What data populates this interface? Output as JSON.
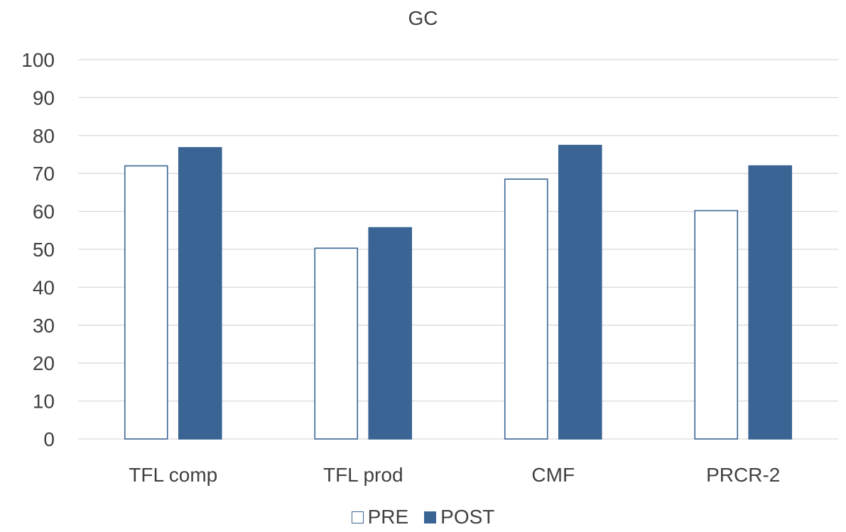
{
  "chart_data": {
    "type": "bar",
    "title": "GC",
    "xlabel": "",
    "ylabel": "",
    "ylim": [
      0,
      100
    ],
    "yticks": [
      0,
      10,
      20,
      30,
      40,
      50,
      60,
      70,
      80,
      90,
      100
    ],
    "grid": true,
    "legend_position": "bottom",
    "categories": [
      "TFL comp",
      "TFL prod",
      "CMF",
      "PRCR-2"
    ],
    "series": [
      {
        "name": "PRE",
        "values": [
          72,
          50.3,
          68.5,
          60.2
        ],
        "fill": "#FFFFFF",
        "stroke": "#3A6494"
      },
      {
        "name": "POST",
        "values": [
          76.8,
          55.7,
          77.4,
          72
        ],
        "fill": "#3A6494",
        "stroke": "#3A6494"
      }
    ]
  }
}
